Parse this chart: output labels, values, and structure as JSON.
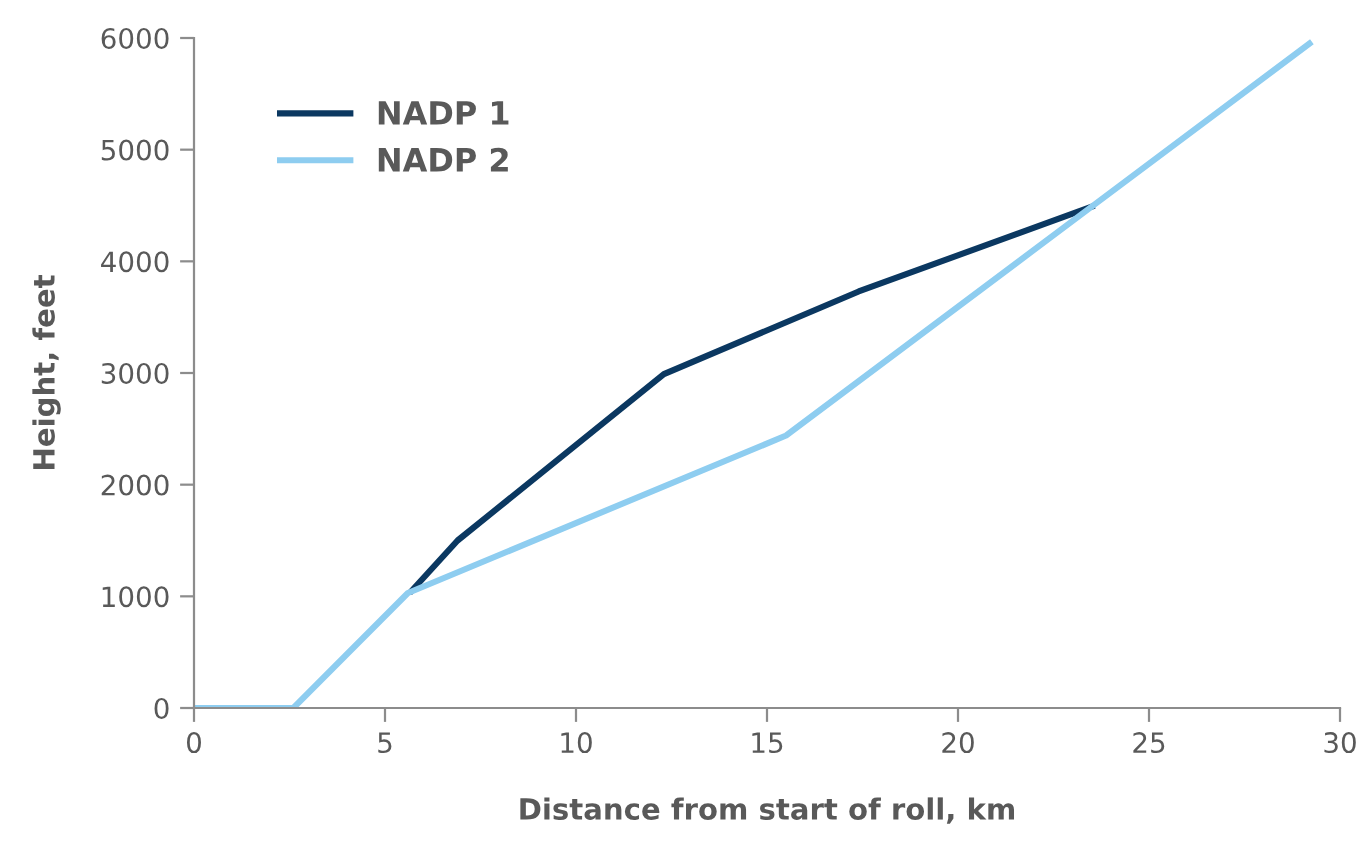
{
  "chart_data": {
    "type": "line",
    "xlabel": "Distance from start of roll, km",
    "ylabel": "Height, feet",
    "xlim": [
      0,
      30
    ],
    "xticks": [
      0,
      5,
      10,
      15,
      20,
      25,
      30
    ],
    "ylim": [
      0,
      6000
    ],
    "yticks": [
      0,
      1000,
      2000,
      3000,
      4000,
      5000,
      6000
    ],
    "grid": false,
    "legend": "top left",
    "marker": "none",
    "line_style": "solid",
    "series": [
      {
        "name": "NADP 1",
        "color": "#0b3861",
        "x": [
          5.7,
          6.9,
          12.3,
          17.4,
          23.5
        ],
        "values": [
          1050,
          1500,
          2990,
          3730,
          4490
        ]
      },
      {
        "name": "NADP 2",
        "color": "#8ecdf0",
        "x": [
          0,
          2.6,
          5.6,
          15.5,
          23.5,
          29.2
        ],
        "values": [
          0,
          0,
          1030,
          2440,
          4490,
          5950
        ]
      }
    ]
  }
}
